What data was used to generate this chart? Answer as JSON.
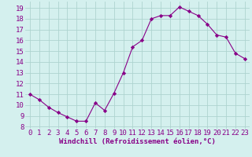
{
  "x": [
    0,
    1,
    2,
    3,
    4,
    5,
    6,
    7,
    8,
    9,
    10,
    11,
    12,
    13,
    14,
    15,
    16,
    17,
    18,
    19,
    20,
    21,
    22,
    23
  ],
  "y": [
    11.0,
    10.5,
    9.8,
    9.3,
    8.9,
    8.5,
    8.5,
    10.2,
    9.5,
    11.1,
    13.0,
    15.4,
    16.0,
    18.0,
    18.3,
    18.3,
    19.1,
    18.7,
    18.3,
    17.5,
    16.5,
    16.3,
    14.8,
    14.3
  ],
  "line_color": "#880088",
  "marker": "D",
  "marker_size": 2.2,
  "bg_color": "#d4f0ee",
  "grid_color": "#aed4cf",
  "xlabel": "Windchill (Refroidissement éolien,°C)",
  "xlim": [
    -0.5,
    23.5
  ],
  "ylim": [
    7.8,
    19.6
  ],
  "yticks": [
    8,
    9,
    10,
    11,
    12,
    13,
    14,
    15,
    16,
    17,
    18,
    19
  ],
  "xticks": [
    0,
    1,
    2,
    3,
    4,
    5,
    6,
    7,
    8,
    9,
    10,
    11,
    12,
    13,
    14,
    15,
    16,
    17,
    18,
    19,
    20,
    21,
    22,
    23
  ],
  "xlabel_fontsize": 6.5,
  "tick_fontsize": 6.5,
  "tick_color": "#880088",
  "axis_label_color": "#880088",
  "line_width": 0.8
}
